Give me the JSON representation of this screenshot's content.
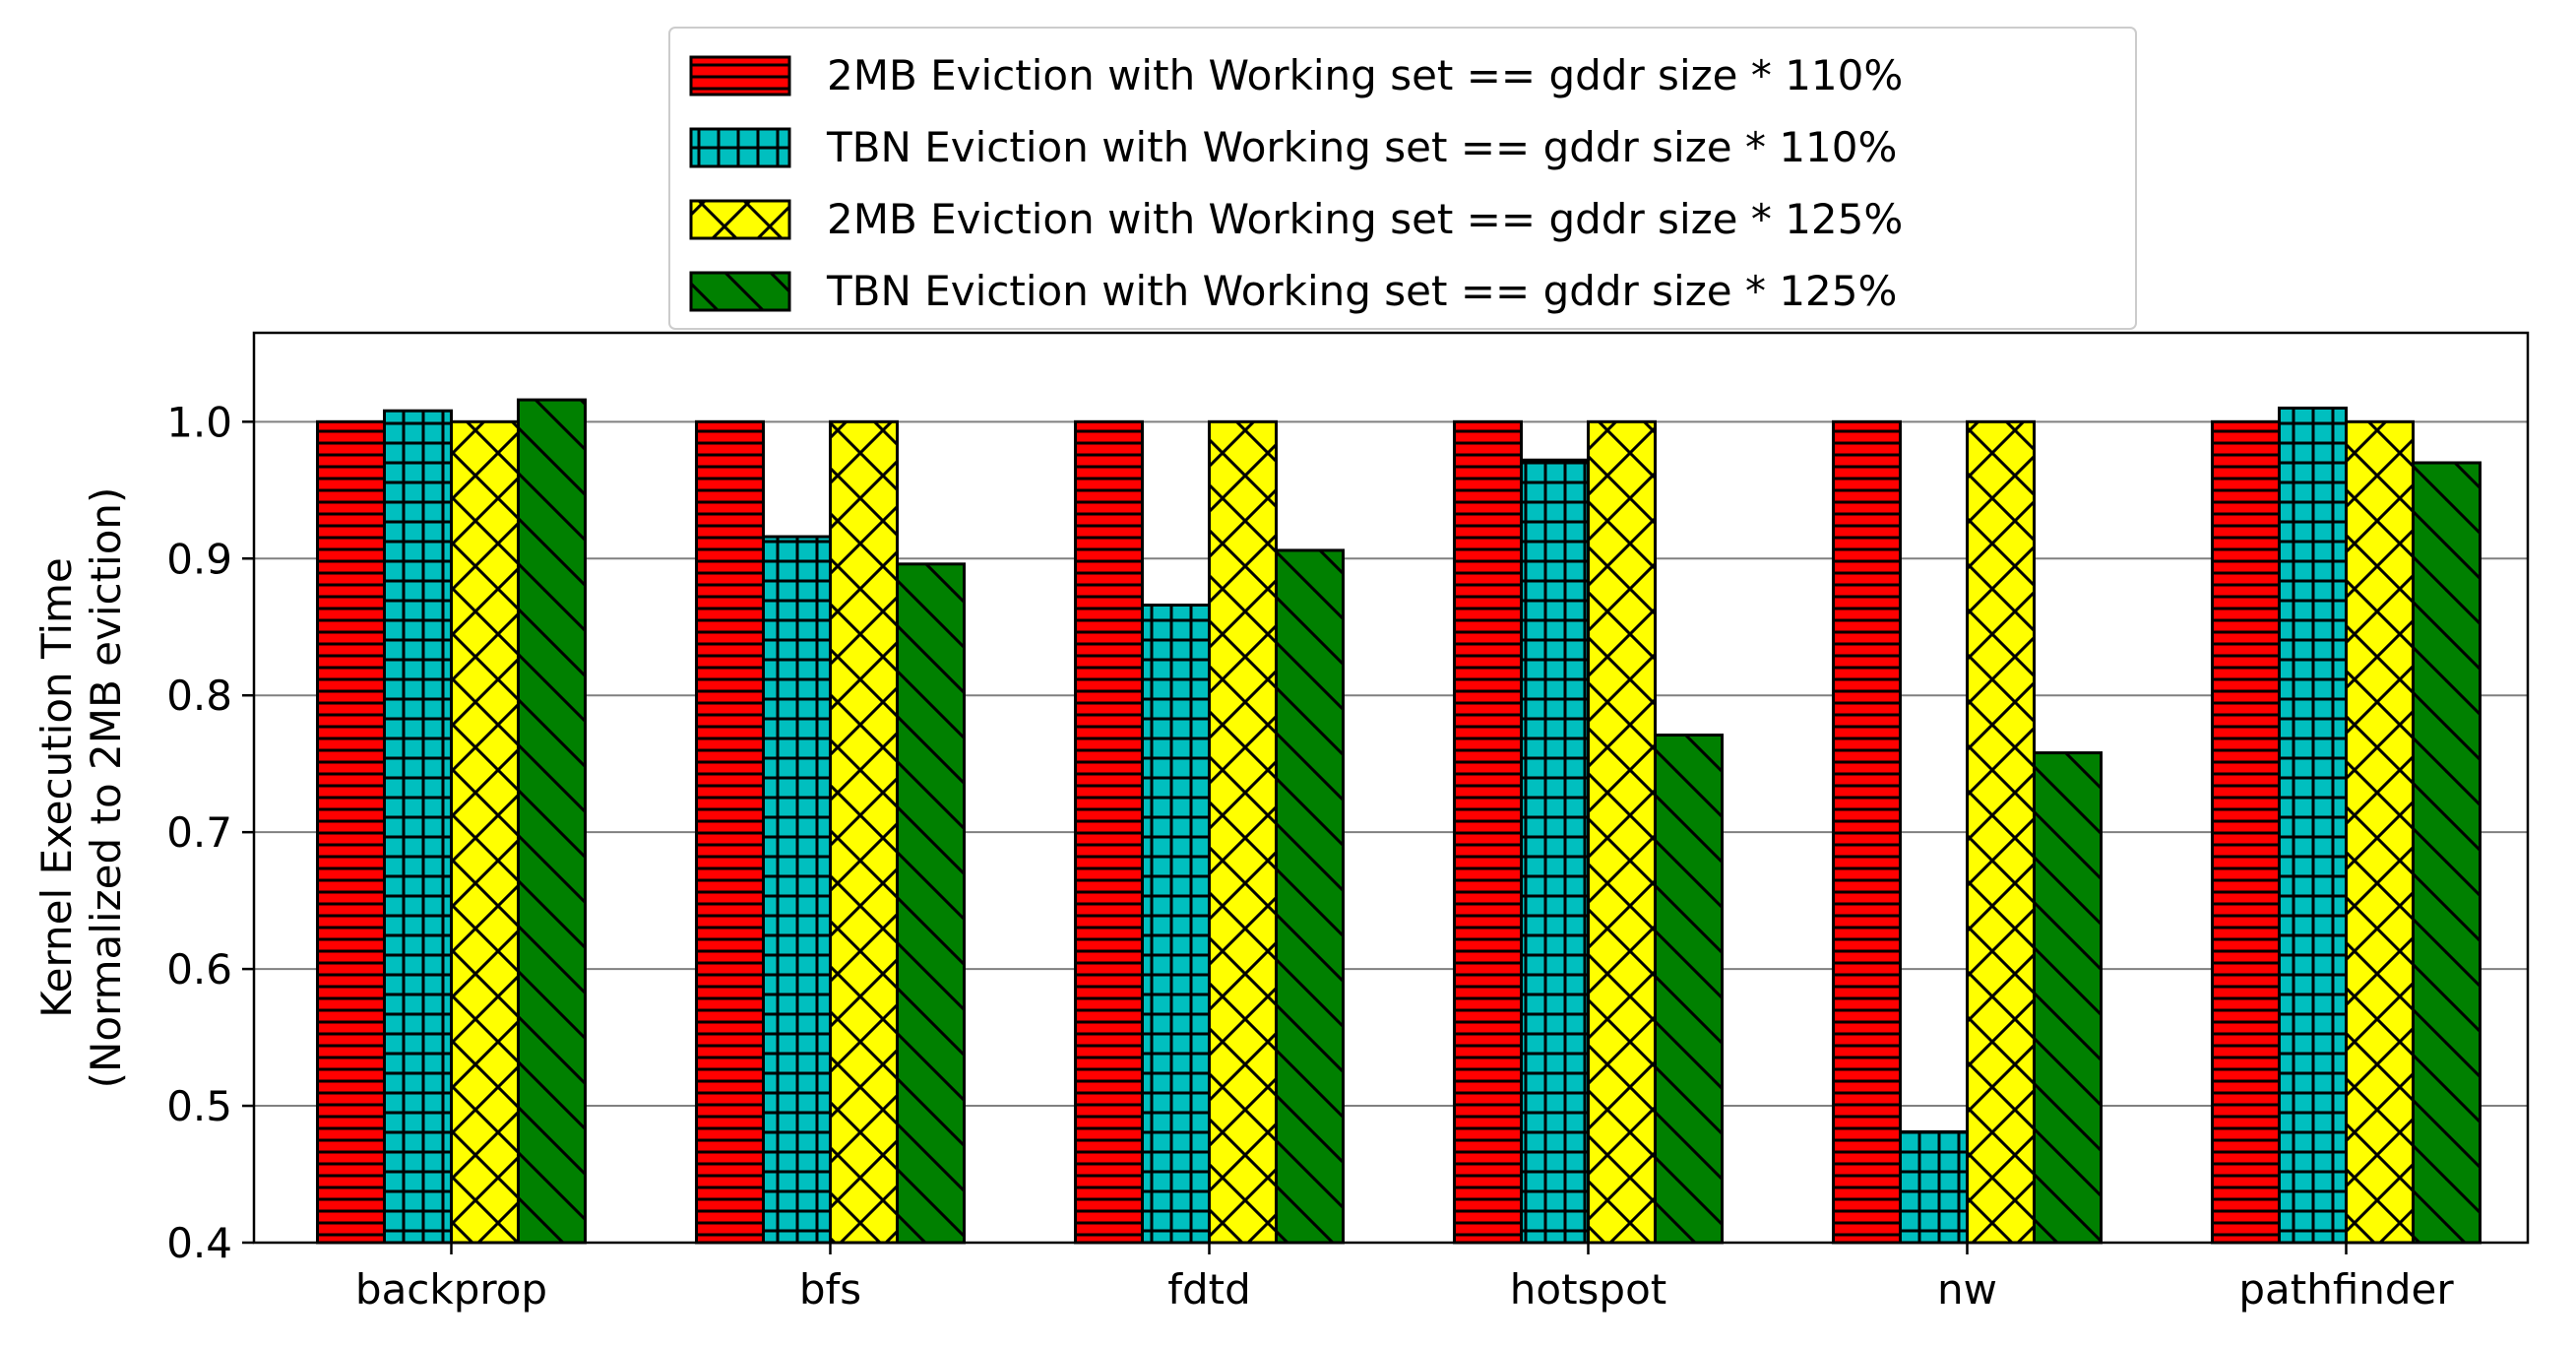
{
  "chart_data": {
    "type": "bar",
    "title": "",
    "xlabel": "",
    "ylabel": "Kernel Execution Time",
    "ylabel_line2": "(Normalized to 2MB eviction)",
    "ylim": [
      0.4,
      1.065
    ],
    "yticks": [
      0.4,
      0.5,
      0.6,
      0.7,
      0.8,
      0.9,
      1.0
    ],
    "ytick_labels": [
      "0.4",
      "0.5",
      "0.6",
      "0.7",
      "0.8",
      "0.9",
      "1.0"
    ],
    "grid": "horizontal",
    "legend_placement": "top-center",
    "categories": [
      "backprop",
      "bfs",
      "fdtd",
      "hotspot",
      "nw",
      "pathfinder"
    ],
    "series": [
      {
        "name": "2MB Eviction with Working set == gddr size * 110%",
        "color": "#ff0000",
        "hatch": "horizontal",
        "values": [
          1.0,
          1.0,
          1.0,
          1.0,
          1.0,
          1.0
        ]
      },
      {
        "name": "TBN Eviction with Working set == gddr size * 110%",
        "color": "#00bfbf",
        "hatch": "grid",
        "values": [
          1.008,
          0.916,
          0.866,
          0.972,
          0.481,
          1.01
        ]
      },
      {
        "name": "2MB Eviction with Working set == gddr size * 125%",
        "color": "#ffff00",
        "hatch": "crosshatch",
        "values": [
          1.0,
          1.0,
          1.0,
          1.0,
          1.0,
          1.0
        ]
      },
      {
        "name": "TBN Eviction with Working set == gddr size * 125%",
        "color": "#008000",
        "hatch": "backslash",
        "values": [
          1.016,
          0.896,
          0.906,
          0.771,
          0.758,
          0.97
        ]
      }
    ]
  }
}
